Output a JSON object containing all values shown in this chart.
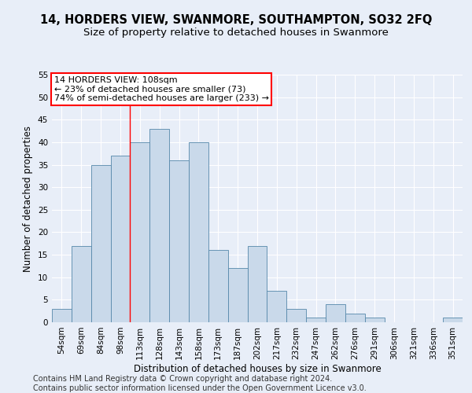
{
  "title": "14, HORDERS VIEW, SWANMORE, SOUTHAMPTON, SO32 2FQ",
  "subtitle": "Size of property relative to detached houses in Swanmore",
  "xlabel": "Distribution of detached houses by size in Swanmore",
  "ylabel": "Number of detached properties",
  "bin_labels": [
    "54sqm",
    "69sqm",
    "84sqm",
    "98sqm",
    "113sqm",
    "128sqm",
    "143sqm",
    "158sqm",
    "173sqm",
    "187sqm",
    "202sqm",
    "217sqm",
    "232sqm",
    "247sqm",
    "262sqm",
    "276sqm",
    "291sqm",
    "306sqm",
    "321sqm",
    "336sqm",
    "351sqm"
  ],
  "bar_heights": [
    3,
    17,
    35,
    37,
    40,
    43,
    36,
    40,
    16,
    12,
    17,
    7,
    3,
    1,
    4,
    2,
    1,
    0,
    0,
    0,
    1
  ],
  "bar_color": "#c9d9ea",
  "bar_edge_color": "#5588aa",
  "vline_x": 3.5,
  "annotation_text": "14 HORDERS VIEW: 108sqm\n← 23% of detached houses are smaller (73)\n74% of semi-detached houses are larger (233) →",
  "annotation_box_color": "white",
  "annotation_box_edge": "red",
  "ylim": [
    0,
    55
  ],
  "yticks": [
    0,
    5,
    10,
    15,
    20,
    25,
    30,
    35,
    40,
    45,
    50,
    55
  ],
  "footer_text": "Contains HM Land Registry data © Crown copyright and database right 2024.\nContains public sector information licensed under the Open Government Licence v3.0.",
  "background_color": "#e8eef8",
  "plot_background_color": "#e8eef8",
  "title_fontsize": 10.5,
  "subtitle_fontsize": 9.5,
  "axis_label_fontsize": 8.5,
  "tick_fontsize": 7.5,
  "footer_fontsize": 7,
  "annotation_fontsize": 8
}
